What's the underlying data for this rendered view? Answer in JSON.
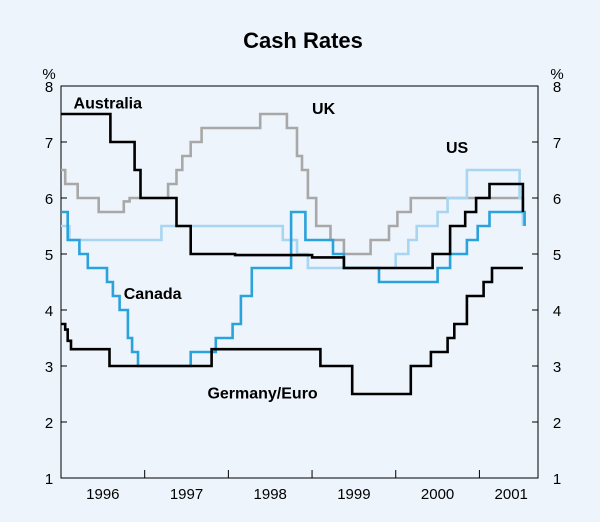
{
  "chart_data": {
    "type": "line",
    "title": "Cash Rates",
    "ylabel_left": "%",
    "ylabel_right": "%",
    "ylim": [
      1,
      8
    ],
    "yticks": [
      1,
      2,
      3,
      4,
      5,
      6,
      7,
      8
    ],
    "xlim": [
      1995.5,
      2001.2
    ],
    "xtick_labels": [
      "1996",
      "1997",
      "1998",
      "1999",
      "2000",
      "2001"
    ],
    "xtick_label_centers": [
      1996.0,
      1997.0,
      1998.0,
      1999.0,
      2000.0,
      2000.88
    ],
    "xtick_marks": [
      1996.5,
      1997.5,
      1998.5,
      1999.5,
      2000.5
    ],
    "grid": false,
    "series": [
      {
        "name": "Australia",
        "color": "#000000",
        "step": true,
        "points": [
          [
            1995.5,
            7.5
          ],
          [
            1996.09,
            7.0
          ],
          [
            1996.38,
            6.5
          ],
          [
            1996.45,
            6.0
          ],
          [
            1996.88,
            5.5
          ],
          [
            1997.05,
            5.0
          ],
          [
            1997.58,
            4.98
          ],
          [
            1998.5,
            4.94
          ],
          [
            1998.88,
            4.75
          ],
          [
            1999.94,
            5.0
          ],
          [
            2000.15,
            5.5
          ],
          [
            2000.33,
            5.75
          ],
          [
            2000.46,
            6.0
          ],
          [
            2000.62,
            6.25
          ],
          [
            2001.0,
            6.25
          ],
          [
            2001.02,
            5.75
          ]
        ]
      },
      {
        "name": "UK",
        "color": "#a8a8a8",
        "step": true,
        "points": [
          [
            1995.5,
            6.5
          ],
          [
            1995.55,
            6.25
          ],
          [
            1995.7,
            6.0
          ],
          [
            1995.95,
            5.75
          ],
          [
            1996.25,
            5.94
          ],
          [
            1996.32,
            6.0
          ],
          [
            1996.78,
            6.25
          ],
          [
            1996.88,
            6.5
          ],
          [
            1996.95,
            6.75
          ],
          [
            1997.05,
            7.0
          ],
          [
            1997.18,
            7.25
          ],
          [
            1997.45,
            7.25
          ],
          [
            1997.72,
            7.25
          ],
          [
            1997.88,
            7.5
          ],
          [
            1998.2,
            7.25
          ],
          [
            1998.32,
            6.75
          ],
          [
            1998.38,
            6.5
          ],
          [
            1998.45,
            6.0
          ],
          [
            1998.55,
            5.5
          ],
          [
            1998.72,
            5.25
          ],
          [
            1998.88,
            5.0
          ],
          [
            1999.12,
            5.0
          ],
          [
            1999.2,
            5.25
          ],
          [
            1999.42,
            5.5
          ],
          [
            1999.52,
            5.75
          ],
          [
            1999.68,
            6.0
          ],
          [
            2000.0,
            6.0
          ],
          [
            2000.3,
            6.0
          ],
          [
            2001.0,
            6.0
          ],
          [
            2001.02,
            5.75
          ]
        ]
      },
      {
        "name": "US",
        "color": "#a8d6f2",
        "step": true,
        "points": [
          [
            1995.5,
            5.5
          ],
          [
            1995.6,
            5.25
          ],
          [
            1996.7,
            5.5
          ],
          [
            1998.15,
            5.25
          ],
          [
            1998.32,
            5.0
          ],
          [
            1998.45,
            4.75
          ],
          [
            1999.5,
            5.0
          ],
          [
            1999.65,
            5.25
          ],
          [
            1999.75,
            5.5
          ],
          [
            1999.85,
            5.5
          ],
          [
            2000.0,
            5.75
          ],
          [
            2000.12,
            6.0
          ],
          [
            2000.35,
            6.5
          ],
          [
            2000.98,
            6.0
          ],
          [
            2001.02,
            5.5
          ]
        ]
      },
      {
        "name": "Canada",
        "color": "#2aa2dc",
        "step": true,
        "points": [
          [
            1995.5,
            5.75
          ],
          [
            1995.58,
            5.25
          ],
          [
            1995.72,
            5.0
          ],
          [
            1995.82,
            4.75
          ],
          [
            1996.05,
            4.5
          ],
          [
            1996.12,
            4.25
          ],
          [
            1996.2,
            4.0
          ],
          [
            1996.3,
            3.5
          ],
          [
            1996.35,
            3.25
          ],
          [
            1996.42,
            3.0
          ],
          [
            1996.55,
            3.0
          ],
          [
            1996.75,
            3.0
          ],
          [
            1997.05,
            3.25
          ],
          [
            1997.35,
            3.5
          ],
          [
            1997.55,
            3.75
          ],
          [
            1997.65,
            4.25
          ],
          [
            1997.78,
            4.75
          ],
          [
            1998.25,
            5.75
          ],
          [
            1998.42,
            5.25
          ],
          [
            1998.75,
            5.0
          ],
          [
            1998.88,
            4.75
          ],
          [
            1999.3,
            4.5
          ],
          [
            1999.72,
            4.5
          ],
          [
            2000.0,
            4.75
          ],
          [
            2000.15,
            5.0
          ],
          [
            2000.35,
            5.25
          ],
          [
            2000.48,
            5.5
          ],
          [
            2000.62,
            5.75
          ],
          [
            2001.0,
            5.75
          ],
          [
            2001.04,
            5.5
          ]
        ]
      },
      {
        "name": "Germany/Euro",
        "color": "#000000",
        "step": true,
        "points": [
          [
            1995.5,
            3.75
          ],
          [
            1995.55,
            3.65
          ],
          [
            1995.58,
            3.45
          ],
          [
            1995.62,
            3.3
          ],
          [
            1996.05,
            3.3
          ],
          [
            1996.08,
            3.0
          ],
          [
            1996.5,
            3.0
          ],
          [
            1996.88,
            3.0
          ],
          [
            1997.3,
            3.3
          ],
          [
            1997.88,
            3.3
          ],
          [
            1998.52,
            3.3
          ],
          [
            1998.6,
            3.0
          ],
          [
            1998.98,
            2.5
          ],
          [
            1999.68,
            3.0
          ],
          [
            1999.92,
            3.25
          ],
          [
            2000.0,
            3.25
          ],
          [
            2000.12,
            3.5
          ],
          [
            2000.2,
            3.75
          ],
          [
            2000.35,
            4.25
          ],
          [
            2000.55,
            4.5
          ],
          [
            2000.65,
            4.75
          ],
          [
            2001.02,
            4.75
          ]
        ]
      }
    ],
    "series_labels": [
      {
        "series": "Australia",
        "text": "Australia",
        "at": [
          1995.65,
          7.6
        ]
      },
      {
        "series": "UK",
        "text": "UK",
        "at": [
          1998.5,
          7.5
        ]
      },
      {
        "series": "US",
        "text": "US",
        "at": [
          2000.1,
          6.8
        ]
      },
      {
        "series": "Canada",
        "text": "Canada",
        "at": [
          1996.25,
          4.2
        ]
      },
      {
        "series": "Germany/Euro",
        "text": "Germany/Euro",
        "at": [
          1997.25,
          2.42
        ]
      }
    ]
  }
}
